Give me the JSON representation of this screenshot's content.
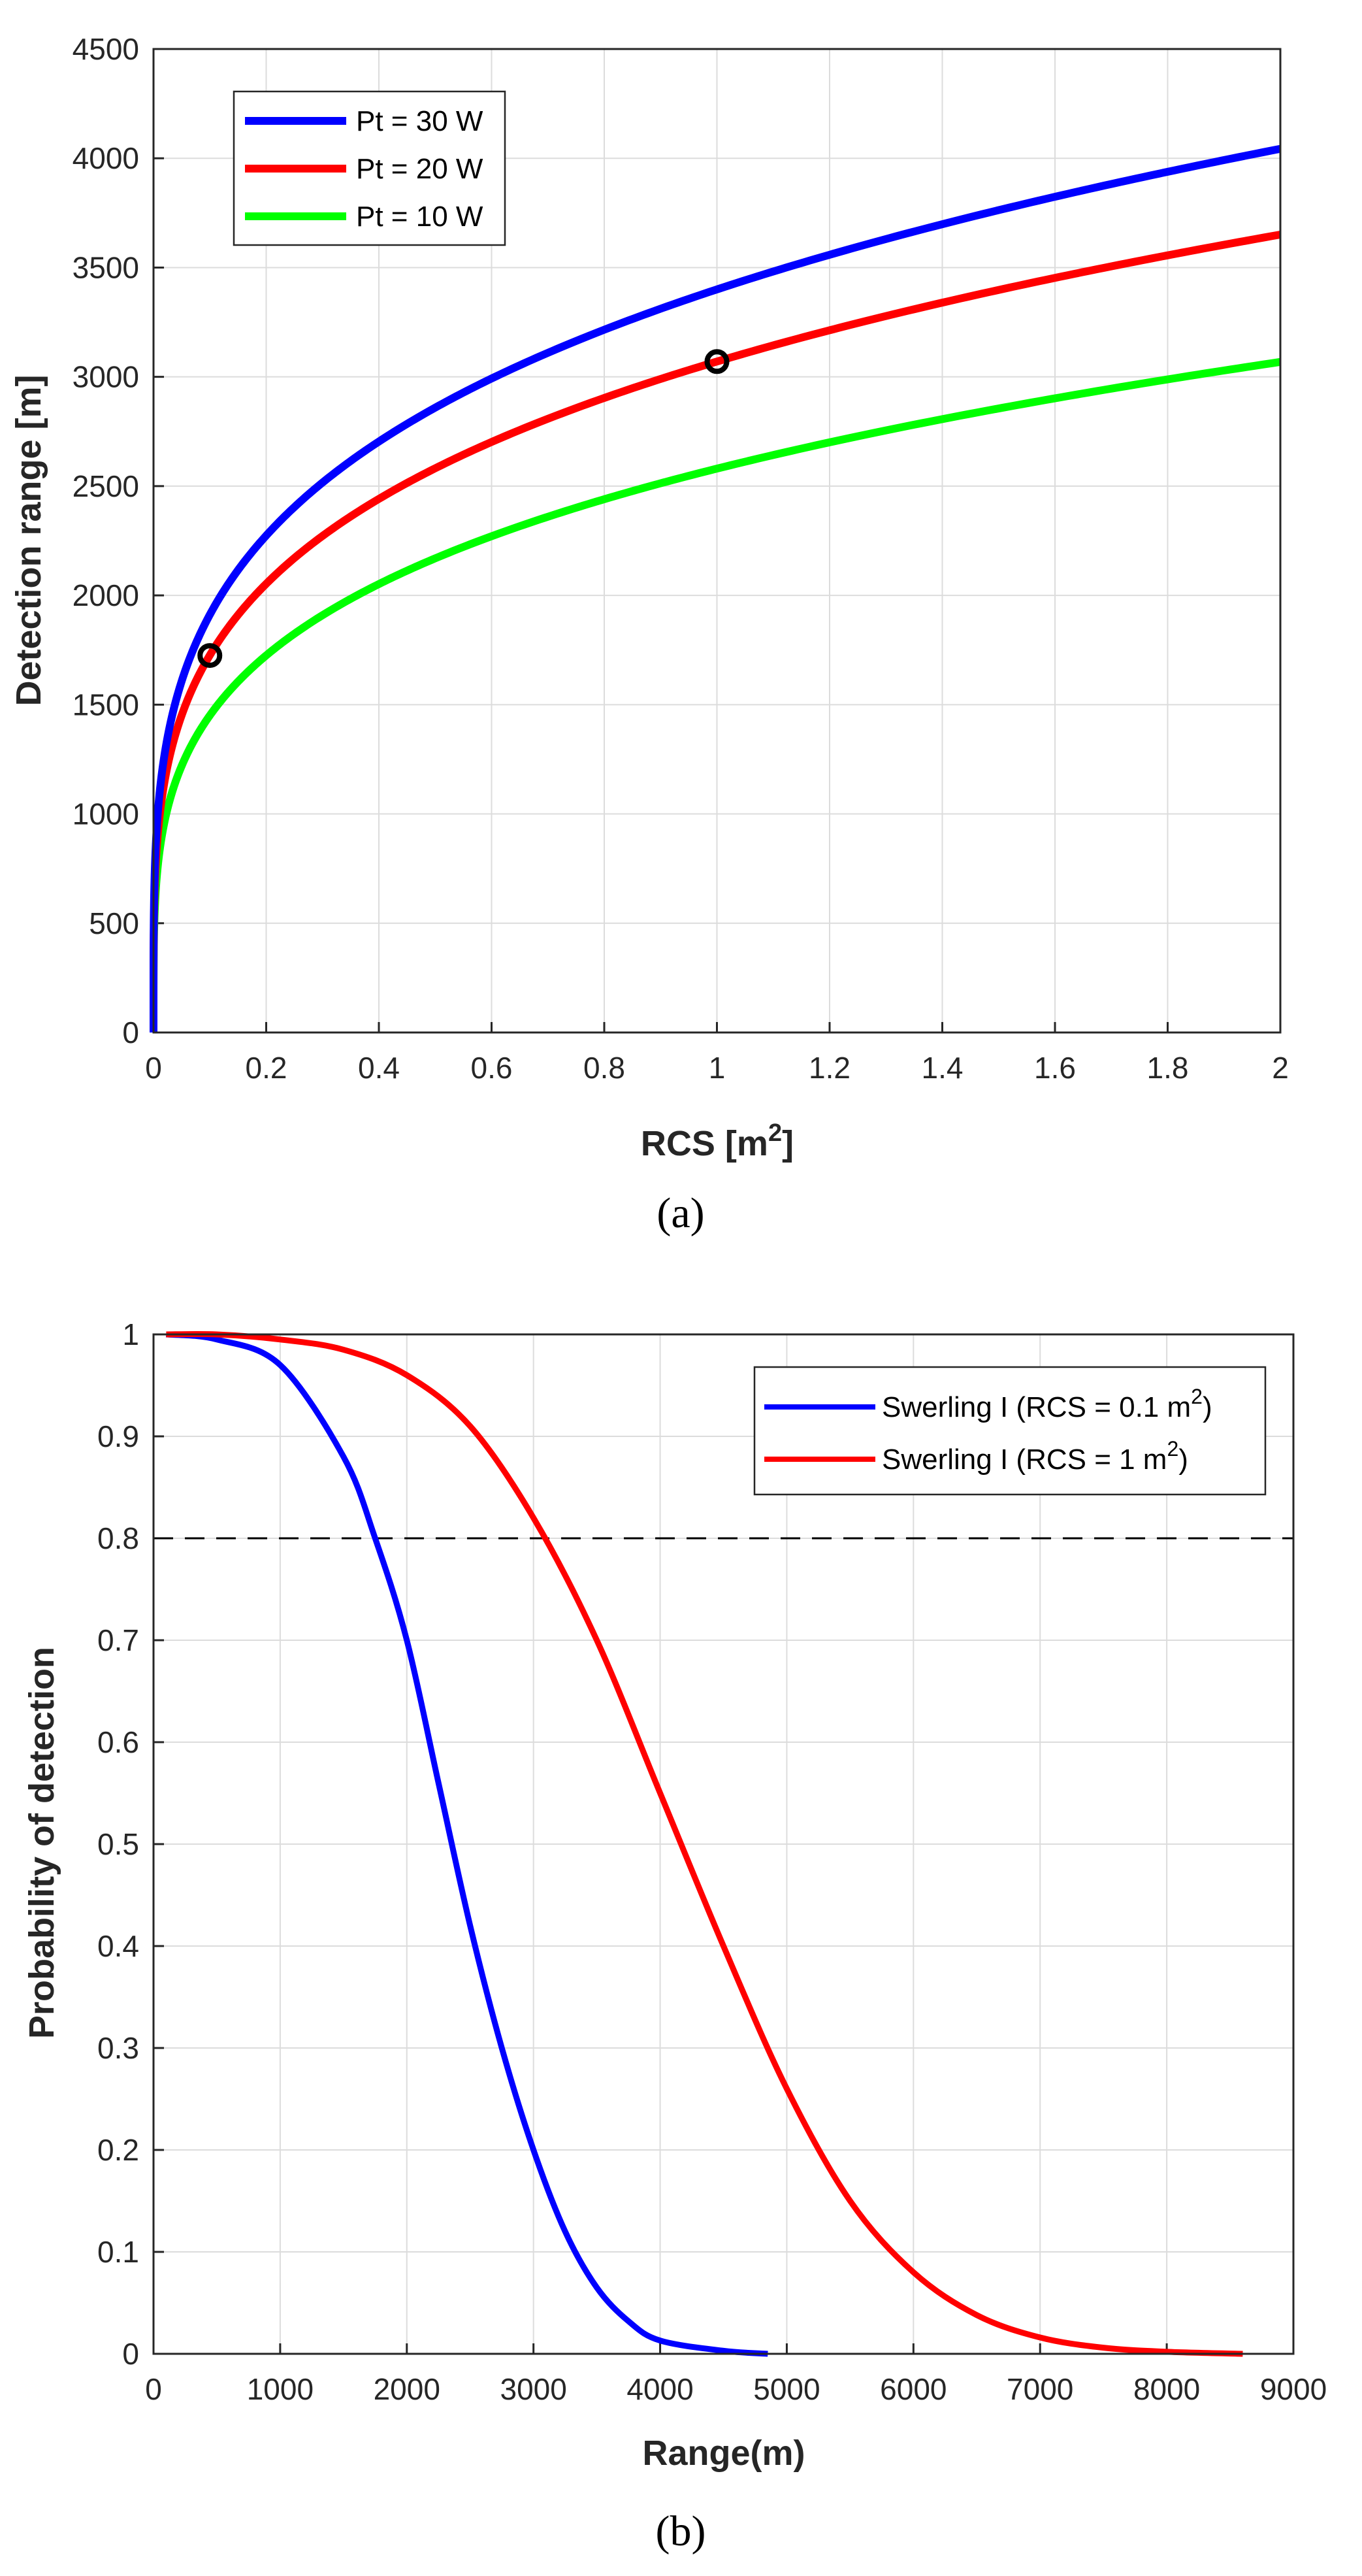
{
  "chart_data": [
    {
      "type": "line",
      "panel_label": "(a)",
      "xlabel": "RCS [m",
      "xlabel_sup": "2",
      "xlabel_suffix": "]",
      "ylabel": "Detection range [m]",
      "xlim": [
        0,
        2
      ],
      "ylim": [
        0,
        4500
      ],
      "xticks": [
        "0",
        "0.2",
        "0.4",
        "0.6",
        "0.8",
        "1",
        "1.2",
        "1.4",
        "1.6",
        "1.8",
        "2"
      ],
      "yticks": [
        "0",
        "500",
        "1000",
        "1500",
        "2000",
        "2500",
        "3000",
        "3500",
        "4000",
        "4500"
      ],
      "grid": true,
      "legend_position": "top-left",
      "series": [
        {
          "name": "Pt = 30 W",
          "color": "#0000ff",
          "formula": "range = 3400 * RCS^0.25",
          "coef": 3400
        },
        {
          "name": "Pt = 20 W",
          "color": "#ff0000",
          "formula": "range = 3070 * RCS^0.25",
          "coef": 3070
        },
        {
          "name": "Pt = 10 W",
          "color": "#00ff00",
          "formula": "range = 2580 * RCS^0.25",
          "coef": 2580
        }
      ],
      "markers": [
        {
          "x": 0.1,
          "y": 1725,
          "shape": "circle",
          "color": "#000000"
        },
        {
          "x": 1.0,
          "y": 3070,
          "shape": "circle",
          "color": "#000000"
        }
      ]
    },
    {
      "type": "line",
      "panel_label": "(b)",
      "xlabel": "Range(m)",
      "ylabel": "Probability of detection",
      "xlim": [
        0,
        9000
      ],
      "ylim": [
        0,
        1
      ],
      "xticks": [
        "0",
        "1000",
        "2000",
        "3000",
        "4000",
        "5000",
        "6000",
        "7000",
        "8000",
        "9000"
      ],
      "yticks": [
        "0",
        "0.1",
        "0.2",
        "0.3",
        "0.4",
        "0.5",
        "0.6",
        "0.7",
        "0.8",
        "0.9",
        "1"
      ],
      "grid": true,
      "legend_position": "top-right",
      "reference_line": {
        "y": 0.8,
        "style": "dashed",
        "color": "#000000"
      },
      "series": [
        {
          "name": "Swerling I (RCS = 0.1 m",
          "name_sup": "2",
          "name_suffix": ")",
          "color": "#0000ff",
          "x": [
            100,
            500,
            1000,
            1500,
            1750,
            2000,
            2250,
            2500,
            2750,
            3000,
            3250,
            3500,
            3750,
            4000,
            4500,
            4850
          ],
          "y": [
            1.0,
            0.995,
            0.97,
            0.88,
            0.8,
            0.7,
            0.56,
            0.42,
            0.3,
            0.2,
            0.12,
            0.065,
            0.032,
            0.013,
            0.003,
            0.0
          ]
        },
        {
          "name": "Swerling I (RCS = 1 m",
          "name_sup": "2",
          "name_suffix": ")",
          "color": "#ff0000",
          "x": [
            100,
            500,
            1000,
            1500,
            2000,
            2500,
            3000,
            3500,
            4000,
            4500,
            5000,
            5500,
            6000,
            6500,
            7000,
            7500,
            8000,
            8600
          ],
          "y": [
            1.0,
            1.0,
            0.995,
            0.985,
            0.96,
            0.91,
            0.82,
            0.7,
            0.55,
            0.4,
            0.26,
            0.15,
            0.08,
            0.038,
            0.016,
            0.006,
            0.002,
            0.0
          ]
        }
      ]
    }
  ]
}
